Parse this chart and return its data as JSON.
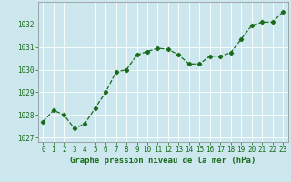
{
  "x": [
    0,
    1,
    2,
    3,
    4,
    5,
    6,
    7,
    8,
    9,
    10,
    11,
    12,
    13,
    14,
    15,
    16,
    17,
    18,
    19,
    20,
    21,
    22,
    23
  ],
  "y": [
    1027.7,
    1028.2,
    1028.0,
    1027.4,
    1027.6,
    1028.3,
    1029.0,
    1029.9,
    1030.0,
    1030.65,
    1030.8,
    1030.95,
    1030.9,
    1030.65,
    1030.25,
    1030.25,
    1030.6,
    1030.6,
    1030.75,
    1031.35,
    1031.95,
    1032.1,
    1032.1,
    1032.55
  ],
  "line_color": "#1a6b1a",
  "marker": "D",
  "marker_size": 2.2,
  "line_width": 0.9,
  "bg_color": "#cce8ee",
  "grid_color": "#ffffff",
  "xlabel": "Graphe pression niveau de la mer (hPa)",
  "xlabel_color": "#1a6b1a",
  "xlabel_fontsize": 6.5,
  "tick_color": "#1a6b1a",
  "tick_fontsize": 5.5,
  "ylim": [
    1026.8,
    1033.0
  ],
  "yticks": [
    1027,
    1028,
    1029,
    1030,
    1031,
    1032
  ],
  "xlim": [
    -0.5,
    23.5
  ],
  "xticks": [
    0,
    1,
    2,
    3,
    4,
    5,
    6,
    7,
    8,
    9,
    10,
    11,
    12,
    13,
    14,
    15,
    16,
    17,
    18,
    19,
    20,
    21,
    22,
    23
  ]
}
